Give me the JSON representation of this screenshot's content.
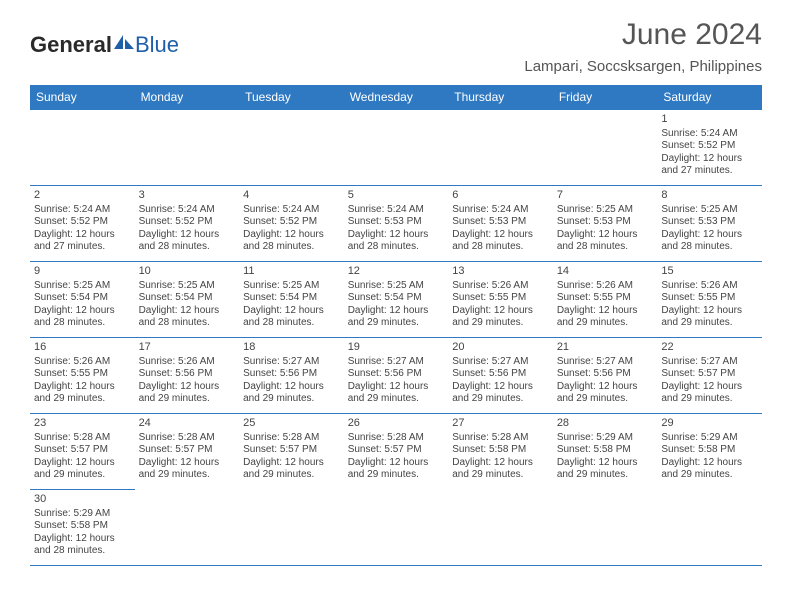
{
  "logo": {
    "text1": "General",
    "text2": "Blue"
  },
  "title": "June 2024",
  "location": "Lampari, Soccsksargen, Philippines",
  "colors": {
    "header_bg": "#2f79c2",
    "header_text": "#ffffff",
    "border": "#2f79c2",
    "text": "#444444",
    "title_text": "#555555"
  },
  "typography": {
    "title_fontsize": 30,
    "location_fontsize": 15,
    "dayheader_fontsize": 12,
    "cell_fontsize": 10
  },
  "day_headers": [
    "Sunday",
    "Monday",
    "Tuesday",
    "Wednesday",
    "Thursday",
    "Friday",
    "Saturday"
  ],
  "weeks": [
    [
      null,
      null,
      null,
      null,
      null,
      null,
      {
        "n": "1",
        "sr": "Sunrise: 5:24 AM",
        "ss": "Sunset: 5:52 PM",
        "d1": "Daylight: 12 hours",
        "d2": "and 27 minutes."
      }
    ],
    [
      {
        "n": "2",
        "sr": "Sunrise: 5:24 AM",
        "ss": "Sunset: 5:52 PM",
        "d1": "Daylight: 12 hours",
        "d2": "and 27 minutes."
      },
      {
        "n": "3",
        "sr": "Sunrise: 5:24 AM",
        "ss": "Sunset: 5:52 PM",
        "d1": "Daylight: 12 hours",
        "d2": "and 28 minutes."
      },
      {
        "n": "4",
        "sr": "Sunrise: 5:24 AM",
        "ss": "Sunset: 5:52 PM",
        "d1": "Daylight: 12 hours",
        "d2": "and 28 minutes."
      },
      {
        "n": "5",
        "sr": "Sunrise: 5:24 AM",
        "ss": "Sunset: 5:53 PM",
        "d1": "Daylight: 12 hours",
        "d2": "and 28 minutes."
      },
      {
        "n": "6",
        "sr": "Sunrise: 5:24 AM",
        "ss": "Sunset: 5:53 PM",
        "d1": "Daylight: 12 hours",
        "d2": "and 28 minutes."
      },
      {
        "n": "7",
        "sr": "Sunrise: 5:25 AM",
        "ss": "Sunset: 5:53 PM",
        "d1": "Daylight: 12 hours",
        "d2": "and 28 minutes."
      },
      {
        "n": "8",
        "sr": "Sunrise: 5:25 AM",
        "ss": "Sunset: 5:53 PM",
        "d1": "Daylight: 12 hours",
        "d2": "and 28 minutes."
      }
    ],
    [
      {
        "n": "9",
        "sr": "Sunrise: 5:25 AM",
        "ss": "Sunset: 5:54 PM",
        "d1": "Daylight: 12 hours",
        "d2": "and 28 minutes."
      },
      {
        "n": "10",
        "sr": "Sunrise: 5:25 AM",
        "ss": "Sunset: 5:54 PM",
        "d1": "Daylight: 12 hours",
        "d2": "and 28 minutes."
      },
      {
        "n": "11",
        "sr": "Sunrise: 5:25 AM",
        "ss": "Sunset: 5:54 PM",
        "d1": "Daylight: 12 hours",
        "d2": "and 28 minutes."
      },
      {
        "n": "12",
        "sr": "Sunrise: 5:25 AM",
        "ss": "Sunset: 5:54 PM",
        "d1": "Daylight: 12 hours",
        "d2": "and 29 minutes."
      },
      {
        "n": "13",
        "sr": "Sunrise: 5:26 AM",
        "ss": "Sunset: 5:55 PM",
        "d1": "Daylight: 12 hours",
        "d2": "and 29 minutes."
      },
      {
        "n": "14",
        "sr": "Sunrise: 5:26 AM",
        "ss": "Sunset: 5:55 PM",
        "d1": "Daylight: 12 hours",
        "d2": "and 29 minutes."
      },
      {
        "n": "15",
        "sr": "Sunrise: 5:26 AM",
        "ss": "Sunset: 5:55 PM",
        "d1": "Daylight: 12 hours",
        "d2": "and 29 minutes."
      }
    ],
    [
      {
        "n": "16",
        "sr": "Sunrise: 5:26 AM",
        "ss": "Sunset: 5:55 PM",
        "d1": "Daylight: 12 hours",
        "d2": "and 29 minutes."
      },
      {
        "n": "17",
        "sr": "Sunrise: 5:26 AM",
        "ss": "Sunset: 5:56 PM",
        "d1": "Daylight: 12 hours",
        "d2": "and 29 minutes."
      },
      {
        "n": "18",
        "sr": "Sunrise: 5:27 AM",
        "ss": "Sunset: 5:56 PM",
        "d1": "Daylight: 12 hours",
        "d2": "and 29 minutes."
      },
      {
        "n": "19",
        "sr": "Sunrise: 5:27 AM",
        "ss": "Sunset: 5:56 PM",
        "d1": "Daylight: 12 hours",
        "d2": "and 29 minutes."
      },
      {
        "n": "20",
        "sr": "Sunrise: 5:27 AM",
        "ss": "Sunset: 5:56 PM",
        "d1": "Daylight: 12 hours",
        "d2": "and 29 minutes."
      },
      {
        "n": "21",
        "sr": "Sunrise: 5:27 AM",
        "ss": "Sunset: 5:56 PM",
        "d1": "Daylight: 12 hours",
        "d2": "and 29 minutes."
      },
      {
        "n": "22",
        "sr": "Sunrise: 5:27 AM",
        "ss": "Sunset: 5:57 PM",
        "d1": "Daylight: 12 hours",
        "d2": "and 29 minutes."
      }
    ],
    [
      {
        "n": "23",
        "sr": "Sunrise: 5:28 AM",
        "ss": "Sunset: 5:57 PM",
        "d1": "Daylight: 12 hours",
        "d2": "and 29 minutes."
      },
      {
        "n": "24",
        "sr": "Sunrise: 5:28 AM",
        "ss": "Sunset: 5:57 PM",
        "d1": "Daylight: 12 hours",
        "d2": "and 29 minutes."
      },
      {
        "n": "25",
        "sr": "Sunrise: 5:28 AM",
        "ss": "Sunset: 5:57 PM",
        "d1": "Daylight: 12 hours",
        "d2": "and 29 minutes."
      },
      {
        "n": "26",
        "sr": "Sunrise: 5:28 AM",
        "ss": "Sunset: 5:57 PM",
        "d1": "Daylight: 12 hours",
        "d2": "and 29 minutes."
      },
      {
        "n": "27",
        "sr": "Sunrise: 5:28 AM",
        "ss": "Sunset: 5:58 PM",
        "d1": "Daylight: 12 hours",
        "d2": "and 29 minutes."
      },
      {
        "n": "28",
        "sr": "Sunrise: 5:29 AM",
        "ss": "Sunset: 5:58 PM",
        "d1": "Daylight: 12 hours",
        "d2": "and 29 minutes."
      },
      {
        "n": "29",
        "sr": "Sunrise: 5:29 AM",
        "ss": "Sunset: 5:58 PM",
        "d1": "Daylight: 12 hours",
        "d2": "and 29 minutes."
      }
    ],
    [
      {
        "n": "30",
        "sr": "Sunrise: 5:29 AM",
        "ss": "Sunset: 5:58 PM",
        "d1": "Daylight: 12 hours",
        "d2": "and 28 minutes."
      },
      null,
      null,
      null,
      null,
      null,
      null
    ]
  ]
}
